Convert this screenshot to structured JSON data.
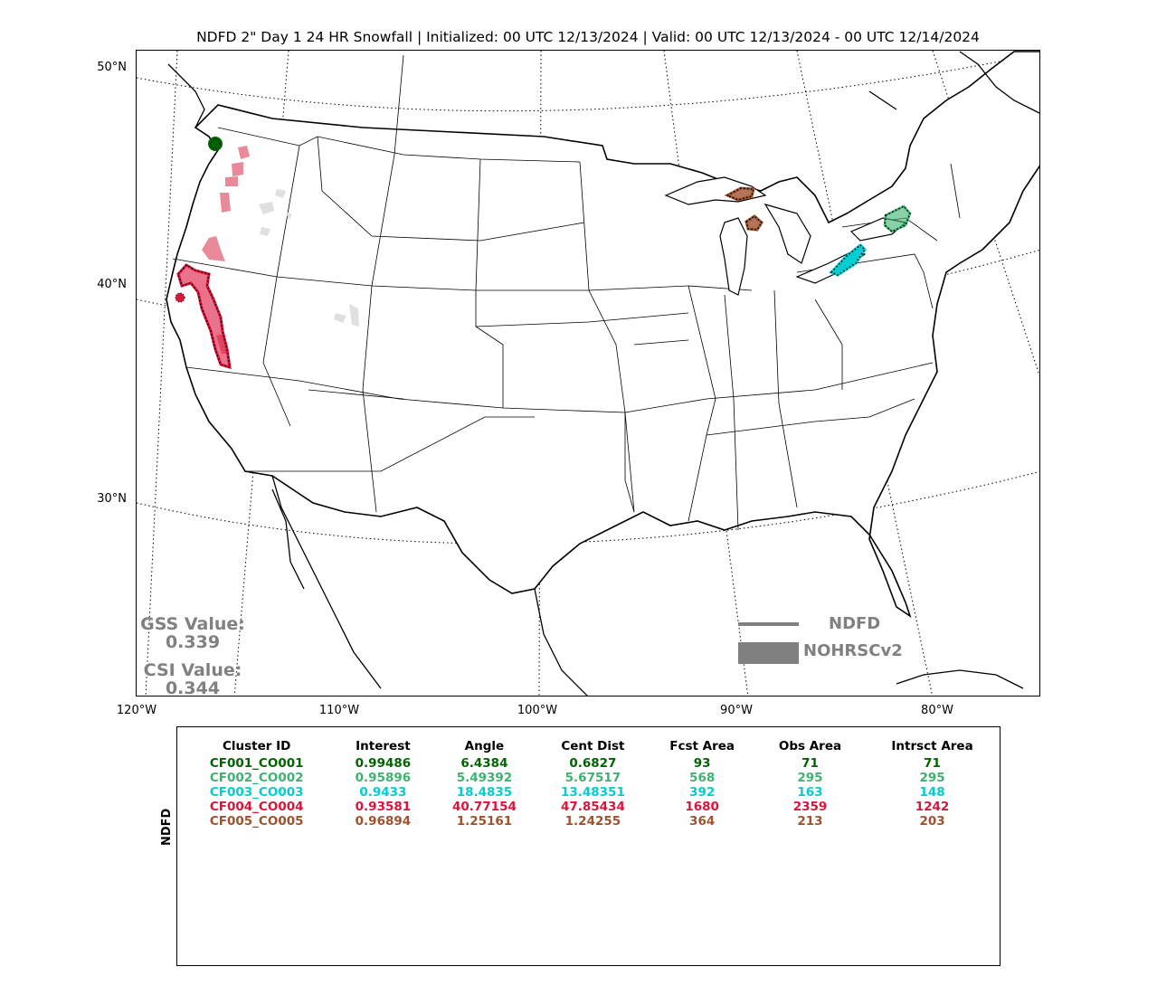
{
  "title": "NDFD 2\" Day 1 24 HR Snowfall | Initialized: 00 UTC 12/13/2024 | Valid: 00 UTC 12/13/2024 - 00 UTC 12/14/2024",
  "map": {
    "lat_labels": [
      "50°N",
      "40°N",
      "30°N"
    ],
    "lon_labels": [
      "120°W",
      "110°W",
      "100°W",
      "90°W",
      "80°W"
    ],
    "colors": {
      "CF001": "#006400",
      "CF002": "#3cb371",
      "CF003": "#00ced1",
      "CF004": "#dc143c",
      "CF005": "#a0522d",
      "unmatched": "#e0e0e0",
      "pink": "#e88a9a"
    }
  },
  "scores": {
    "gss_label": "GSS Value:",
    "gss_value": "0.339",
    "csi_label": "CSI Value:",
    "csi_value": "0.344"
  },
  "legend": {
    "line_label": "NDFD",
    "fill_label": "NOHRSCv2"
  },
  "stats": {
    "ylabel": "NDFD",
    "headers": [
      "Cluster ID",
      "Interest",
      "Angle",
      "Cent Dist",
      "Fcst Area",
      "Obs Area",
      "Intrsct Area"
    ],
    "rows": [
      {
        "color": "#006400",
        "cells": [
          "CF001_CO001",
          "0.99486",
          "6.4384",
          "0.6827",
          "93",
          "71",
          "71"
        ]
      },
      {
        "color": "#3cb371",
        "cells": [
          "CF002_CO002",
          "0.95896",
          "5.49392",
          "5.67517",
          "568",
          "295",
          "295"
        ]
      },
      {
        "color": "#00ced1",
        "cells": [
          "CF003_CO003",
          "0.9433",
          "18.4835",
          "13.48351",
          "392",
          "163",
          "148"
        ]
      },
      {
        "color": "#dc143c",
        "cells": [
          "CF004_CO004",
          "0.93581",
          "40.77154",
          "47.85434",
          "1680",
          "2359",
          "1242"
        ]
      },
      {
        "color": "#a0522d",
        "cells": [
          "CF005_CO005",
          "0.96894",
          "1.25161",
          "1.24255",
          "364",
          "213",
          "203"
        ]
      }
    ]
  }
}
